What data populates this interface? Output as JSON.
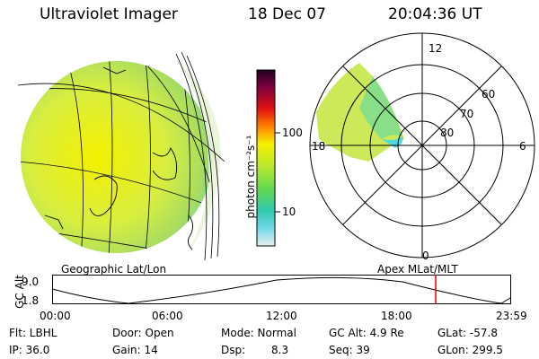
{
  "header": {
    "title": "Ultraviolet Imager",
    "date": "18 Dec 07",
    "time": "20:04:36 UT"
  },
  "geo_map": {
    "label": "Geographic Lat/Lon"
  },
  "colorbar": {
    "unit_label": "photon cm⁻²s⁻¹",
    "ticks": [
      "100",
      "10"
    ]
  },
  "polar_map": {
    "label": "Apex MLat/MLT",
    "mlt_labels": {
      "top": "12",
      "right": "6",
      "bottom": "0",
      "left": "18"
    },
    "lat_labels": [
      "60",
      "70",
      "80"
    ]
  },
  "altitude_plot": {
    "ylabel": "GC Alt",
    "y_ticks": [
      "9.0",
      "1.8"
    ],
    "x_ticks": [
      "00:00",
      "06:00",
      "12:00",
      "18:00",
      "23:59"
    ],
    "cursor_color": "#dd0000"
  },
  "footer": {
    "row1": {
      "filter": "Flt: LBHL",
      "door": "Door: Open",
      "mode": "Mode: Normal",
      "gc_alt": "GC Alt: 4.9 Re",
      "glat": "GLat: -57.8"
    },
    "row2": {
      "ip": "IP: 36.0",
      "gain": "Gain: 14",
      "dsp_label": "Dsp:",
      "dsp_value": "8.3",
      "seq": "Seq: 39",
      "glon": "GLon: 299.5"
    }
  }
}
